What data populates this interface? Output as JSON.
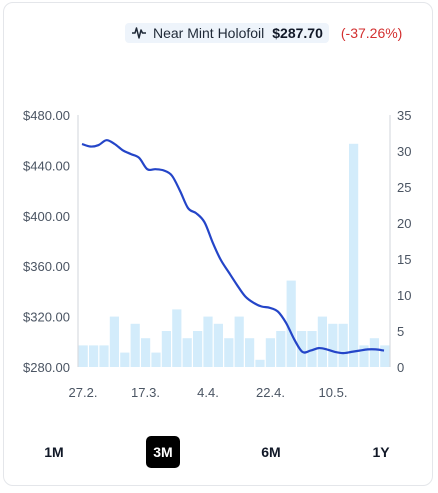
{
  "legend": {
    "series_name": "Near Mint Holofoil",
    "price": "$287.70",
    "change": "(-37.26%)",
    "icon": "line-chart-icon",
    "change_color": "#d32f2f"
  },
  "ranges": {
    "items": [
      "1M",
      "3M",
      "6M",
      "1Y"
    ],
    "active": "3M"
  },
  "colors": {
    "line": "#2445c8",
    "bar": "#d3ecfb",
    "axis": "#d1d5db"
  },
  "chart_data": {
    "type": "line",
    "x_ticks": [
      "27.2.",
      "17.3.",
      "4.4.",
      "22.4.",
      "10.5."
    ],
    "price_axis": {
      "ylim": [
        280,
        480
      ],
      "ticks": [
        "$480.00",
        "$440.00",
        "$400.00",
        "$360.00",
        "$320.00",
        "$280.00"
      ]
    },
    "volume_axis": {
      "ylim": [
        0,
        35
      ],
      "ticks": [
        "35",
        "30",
        "25",
        "20",
        "15",
        "10",
        "5",
        "0"
      ]
    },
    "series": [
      {
        "kind": "line",
        "values": [
          457,
          455,
          456,
          460,
          457,
          452,
          449,
          446,
          437,
          437,
          436,
          432,
          420,
          406,
          402,
          395,
          379,
          365,
          355,
          345,
          336,
          331,
          328,
          327,
          324,
          315,
          302,
          292,
          293,
          295,
          294,
          292,
          291,
          292,
          293,
          294,
          294,
          293
        ]
      },
      {
        "kind": "bar",
        "values": [
          3,
          3,
          3,
          7,
          2,
          6,
          4,
          2,
          5,
          8,
          4,
          5,
          7,
          6,
          4,
          7,
          4,
          1,
          4,
          5,
          12,
          5,
          5,
          7,
          6,
          6,
          31,
          3,
          4,
          3
        ]
      }
    ]
  }
}
